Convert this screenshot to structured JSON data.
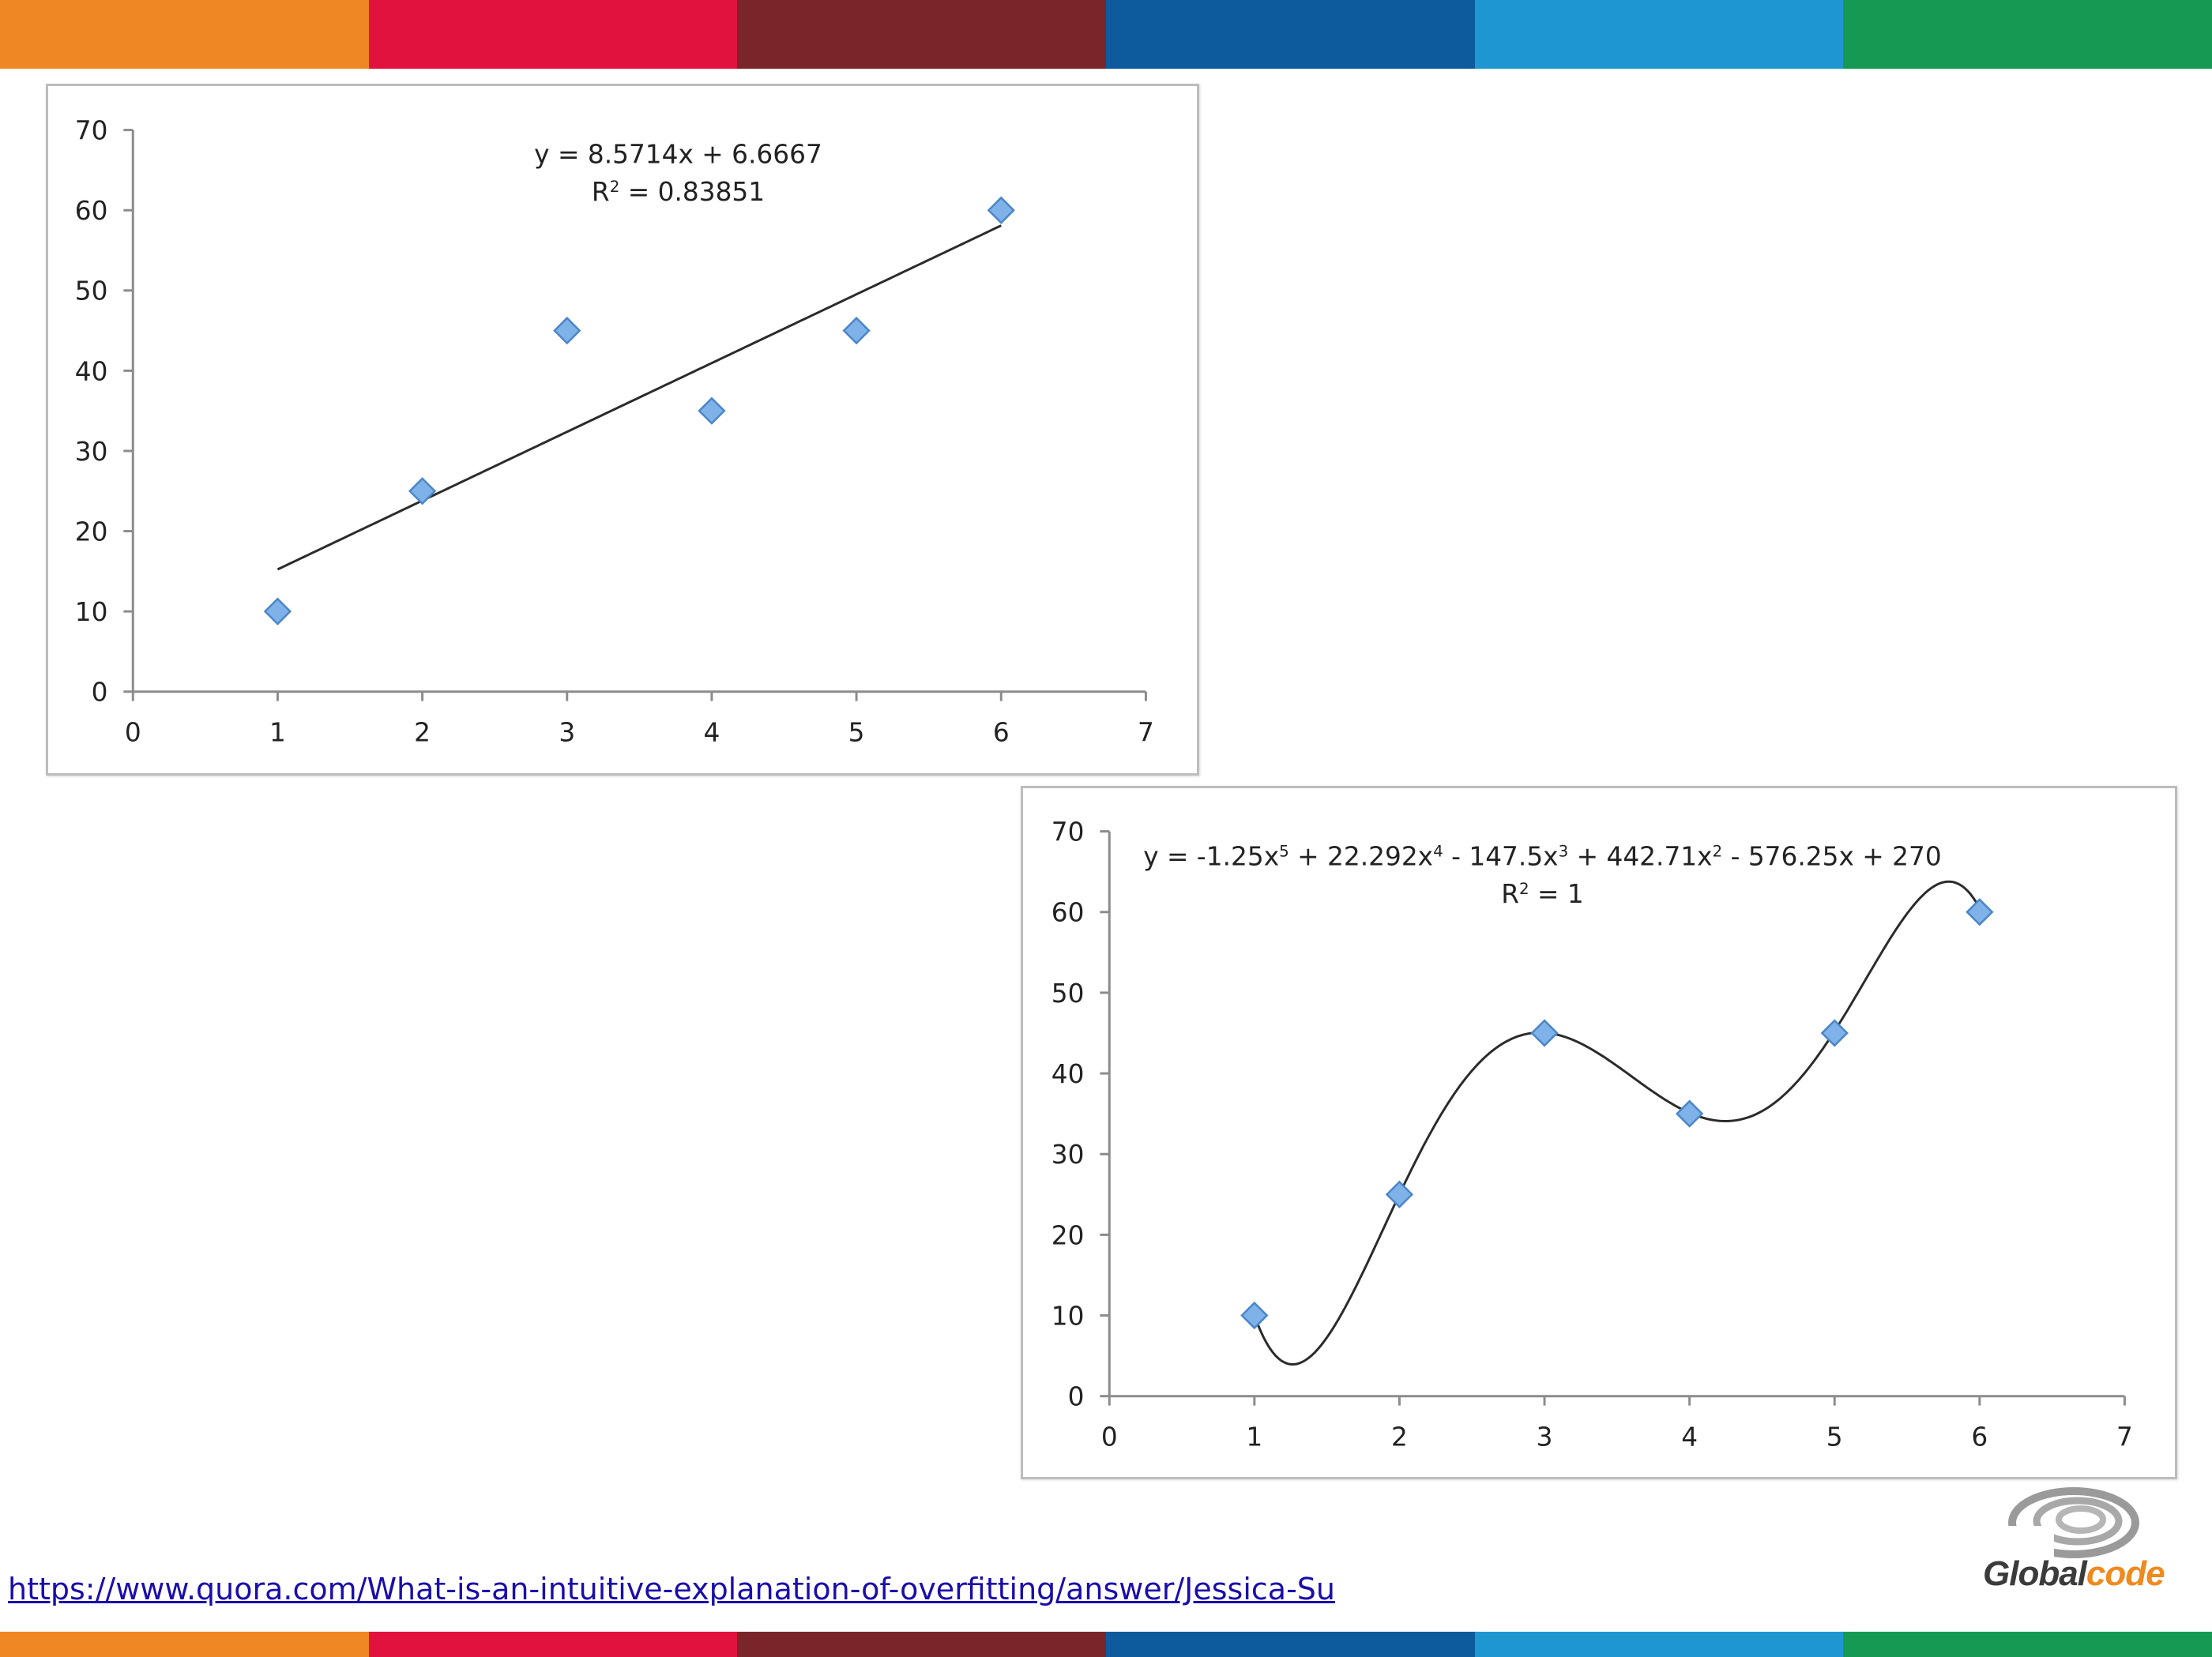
{
  "colors": {
    "stripes": [
      "#ee8724",
      "#e1123d",
      "#79252a",
      "#0d5a9c",
      "#1e97d1",
      "#169a53"
    ],
    "marker_fill": "#7eb2e8",
    "marker_stroke": "#4a86c8",
    "line": "#2b2b2b",
    "link": "#1a0dab"
  },
  "source_link": "https://www.quora.com/What-is-an-intuitive-explanation-of-overfitting/answer/Jessica-Su",
  "logo": {
    "word_a": "Global",
    "word_b": "code",
    "icon": "globalcode-swirl-icon"
  },
  "chart_data": [
    {
      "type": "scatter",
      "title": "",
      "xlabel": "",
      "ylabel": "",
      "x": [
        1,
        2,
        3,
        4,
        5,
        6
      ],
      "y": [
        10,
        25,
        45,
        35,
        45,
        60
      ],
      "xlim": [
        0,
        7
      ],
      "ylim": [
        0,
        70
      ],
      "xticks": [
        "0",
        "1",
        "2",
        "3",
        "4",
        "5",
        "6",
        "7"
      ],
      "yticks": [
        "0",
        "10",
        "20",
        "30",
        "40",
        "50",
        "60",
        "70"
      ],
      "grid": false,
      "marker": "diamond",
      "trendline": {
        "kind": "linear",
        "coefficients": [
          8.5714,
          6.6667
        ],
        "x_range": [
          1,
          6
        ]
      },
      "annotations": [
        "y = 8.5714x + 6.6667",
        "R² = 0.83851"
      ]
    },
    {
      "type": "scatter",
      "title": "",
      "xlabel": "",
      "ylabel": "",
      "x": [
        1,
        2,
        3,
        4,
        5,
        6
      ],
      "y": [
        10,
        25,
        45,
        35,
        45,
        60
      ],
      "xlim": [
        0,
        7
      ],
      "ylim": [
        0,
        70
      ],
      "xticks": [
        "0",
        "1",
        "2",
        "3",
        "4",
        "5",
        "6",
        "7"
      ],
      "yticks": [
        "0",
        "10",
        "20",
        "30",
        "40",
        "50",
        "60",
        "70"
      ],
      "grid": false,
      "marker": "diamond",
      "trendline": {
        "kind": "polynomial",
        "degree": 5,
        "coefficients": [
          -1.25,
          22.292,
          -147.5,
          442.71,
          -576.25,
          270
        ],
        "x_range": [
          1,
          6
        ]
      },
      "annotations": [
        "y = -1.25x⁵ + 22.292x⁴ - 147.5x³ + 442.71x² - 576.25x + 270",
        "R² = 1"
      ]
    }
  ]
}
